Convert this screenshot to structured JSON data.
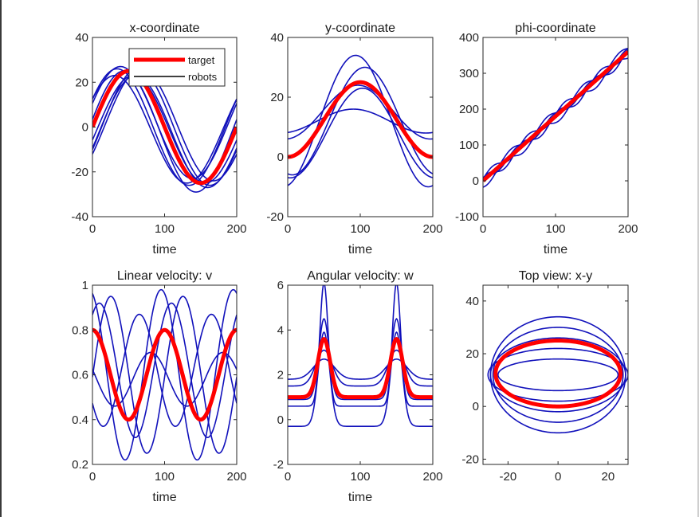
{
  "colors": {
    "target": "#ff0000",
    "robot": "#1111bb",
    "legend_robot": "#000000",
    "axis": "#262626"
  },
  "legend": {
    "entries": [
      "target",
      "robots"
    ]
  },
  "chart_data": [
    {
      "id": "x",
      "type": "line",
      "title": "x-coordinate",
      "xlabel": "time",
      "ylabel": "",
      "xlim": [
        0,
        200
      ],
      "ylim": [
        -40,
        40
      ],
      "xticks": [
        "0",
        "100",
        "200"
      ],
      "yticks": [
        "40",
        "20",
        "0",
        "-20",
        "-40"
      ],
      "xtick_values": [
        0,
        100,
        200
      ],
      "ytick_values": [
        40,
        20,
        0,
        -20,
        -40
      ],
      "legend": true,
      "target": {
        "kind": "sin",
        "amp": 25,
        "period": 200,
        "phase": 0,
        "offset": 0
      },
      "robots": [
        {
          "kind": "sin",
          "amp": 25,
          "period": 200,
          "phase": 0.35,
          "offset": 2
        },
        {
          "kind": "sin",
          "amp": 26,
          "period": 200,
          "phase": -0.4,
          "offset": 0
        },
        {
          "kind": "sin",
          "amp": 24,
          "period": 200,
          "phase": 0.6,
          "offset": -1
        },
        {
          "kind": "sin",
          "amp": 25,
          "period": 200,
          "phase": -0.55,
          "offset": 1
        },
        {
          "kind": "sin",
          "amp": 27,
          "period": 200,
          "phase": 0.2,
          "offset": -2
        },
        {
          "kind": "sin",
          "amp": 24,
          "period": 200,
          "phase": -0.2,
          "offset": -1
        },
        {
          "kind": "sin",
          "amp": 26,
          "period": 200,
          "phase": 0.5,
          "offset": 0
        },
        {
          "kind": "sin",
          "amp": 25,
          "period": 200,
          "phase": -0.3,
          "offset": -2
        }
      ]
    },
    {
      "id": "y",
      "type": "line",
      "title": "y-coordinate",
      "xlabel": "time",
      "ylabel": "",
      "xlim": [
        0,
        200
      ],
      "ylim": [
        -20,
        40
      ],
      "xticks": [
        "0",
        "100",
        "200"
      ],
      "yticks": [
        "40",
        "20",
        "0",
        "-20"
      ],
      "xtick_values": [
        0,
        100,
        200
      ],
      "ytick_values": [
        40,
        20,
        0,
        -20
      ],
      "legend": false,
      "target": {
        "kind": "cos",
        "amp": -12.5,
        "period": 200,
        "phase": 0,
        "offset": 12.5
      },
      "robots": [
        {
          "kind": "cos",
          "amp": -22,
          "period": 200,
          "phase": 0.2,
          "offset": 12
        },
        {
          "kind": "cos",
          "amp": -18,
          "period": 200,
          "phase": -0.2,
          "offset": 12
        },
        {
          "kind": "cos",
          "amp": -4,
          "period": 200,
          "phase": 0.3,
          "offset": 12
        },
        {
          "kind": "cos",
          "amp": -9,
          "period": 200,
          "phase": 0.1,
          "offset": 15
        },
        {
          "kind": "cos",
          "amp": -15,
          "period": 200,
          "phase": -0.1,
          "offset": 8
        }
      ]
    },
    {
      "id": "phi",
      "type": "line",
      "title": "phi-coordinate",
      "xlabel": "time",
      "ylabel": "",
      "xlim": [
        0,
        200
      ],
      "ylim": [
        -100,
        400
      ],
      "xticks": [
        "0",
        "100",
        "200"
      ],
      "yticks": [
        "400",
        "300",
        "200",
        "100",
        "0",
        "-100"
      ],
      "xtick_values": [
        0,
        100,
        200
      ],
      "ytick_values": [
        400,
        300,
        200,
        100,
        0,
        -100
      ],
      "legend": false,
      "target": {
        "kind": "ramp",
        "slope": 1.8,
        "offset": 0,
        "wig": 0,
        "wp": 0
      },
      "robots": [
        {
          "kind": "ramp",
          "slope": 1.8,
          "offset": 5,
          "wig": 12,
          "wp": 0
        },
        {
          "kind": "ramp",
          "slope": 1.8,
          "offset": -5,
          "wig": 14,
          "wp": 1.0
        },
        {
          "kind": "ramp",
          "slope": 1.8,
          "offset": 0,
          "wig": 10,
          "wp": 2.0
        },
        {
          "kind": "ramp",
          "slope": 1.8,
          "offset": 8,
          "wig": 11,
          "wp": 3.0
        },
        {
          "kind": "ramp",
          "slope": 1.8,
          "offset": -8,
          "wig": 13,
          "wp": 4.0
        }
      ]
    },
    {
      "id": "v",
      "type": "line",
      "title": "Linear velocity: v",
      "xlabel": "time",
      "ylabel": "",
      "xlim": [
        0,
        200
      ],
      "ylim": [
        0.2,
        1
      ],
      "xticks": [
        "0",
        "100",
        "200"
      ],
      "yticks": [
        "1",
        "0.8",
        "0.6",
        "0.4",
        "0.2"
      ],
      "xtick_values": [
        0,
        100,
        200
      ],
      "ytick_values": [
        1,
        0.8,
        0.6,
        0.4,
        0.2
      ],
      "legend": false,
      "target": {
        "kind": "cos2",
        "amp": 0.2,
        "period": 100,
        "phase": 0,
        "offset": 0.6
      },
      "robots": [
        {
          "kind": "cos2",
          "amp": 0.38,
          "period": 100,
          "phase": 0.3,
          "offset": 0.6
        },
        {
          "kind": "cos2",
          "amp": 0.3,
          "period": 100,
          "phase": -0.6,
          "offset": 0.62
        },
        {
          "kind": "cos2",
          "amp": 0.12,
          "period": 100,
          "phase": 1.2,
          "offset": 0.58
        },
        {
          "kind": "cos2",
          "amp": 0.25,
          "period": 100,
          "phase": 2.2,
          "offset": 0.62
        },
        {
          "kind": "cos2",
          "amp": 0.35,
          "period": 100,
          "phase": -1.6,
          "offset": 0.6
        }
      ]
    },
    {
      "id": "w",
      "type": "line",
      "title": "Angular velocity: w",
      "xlabel": "time",
      "ylabel": "",
      "xlim": [
        0,
        200
      ],
      "ylim": [
        -2,
        6
      ],
      "xticks": [
        "0",
        "100",
        "200"
      ],
      "yticks": [
        "6",
        "4",
        "2",
        "0",
        "-2"
      ],
      "xtick_values": [
        0,
        100,
        200
      ],
      "ytick_values": [
        6,
        4,
        2,
        0,
        -2
      ],
      "legend": false,
      "target": {
        "kind": "peak",
        "base": 1.0,
        "height": 2.6,
        "width": 12
      },
      "robots": [
        {
          "kind": "peak",
          "base": 0.6,
          "height": 5.5,
          "width": 8
        },
        {
          "kind": "peak",
          "base": 1.5,
          "height": 1.6,
          "width": 16
        },
        {
          "kind": "peak",
          "base": 1.8,
          "height": 0.9,
          "width": 20
        },
        {
          "kind": "peak",
          "base": 0.9,
          "height": 3.6,
          "width": 10
        },
        {
          "kind": "peak",
          "base": -0.3,
          "height": 4.2,
          "width": 11
        }
      ]
    },
    {
      "id": "xy",
      "type": "line",
      "title": "Top view: x-y",
      "xlabel": "",
      "ylabel": "",
      "xlim": [
        -30,
        28
      ],
      "ylim": [
        -22,
        46
      ],
      "xticks": [
        "-20",
        "0",
        "20"
      ],
      "yticks": [
        "40",
        "20",
        "0",
        "-20"
      ],
      "xtick_values": [
        -20,
        0,
        20
      ],
      "ytick_values": [
        40,
        20,
        0,
        -20
      ],
      "legend": false,
      "target": {
        "kind": "ellipse",
        "rx": 25,
        "ry": 12.5,
        "cy": 12.5,
        "pinch": 0
      },
      "robots": [
        {
          "kind": "ellipse",
          "rx": 27,
          "ry": 22,
          "cy": 12,
          "pinch": 0
        },
        {
          "kind": "ellipse",
          "rx": 26,
          "ry": 18,
          "cy": 12,
          "pinch": 0
        },
        {
          "kind": "ellipse",
          "rx": 27,
          "ry": 14,
          "cy": 12,
          "pinch": 0
        },
        {
          "kind": "ellipse",
          "rx": 28,
          "ry": 10,
          "cy": 12,
          "pinch": 0
        },
        {
          "kind": "ellipse",
          "rx": 24,
          "ry": 6,
          "cy": 12,
          "pinch": 3
        }
      ]
    }
  ]
}
